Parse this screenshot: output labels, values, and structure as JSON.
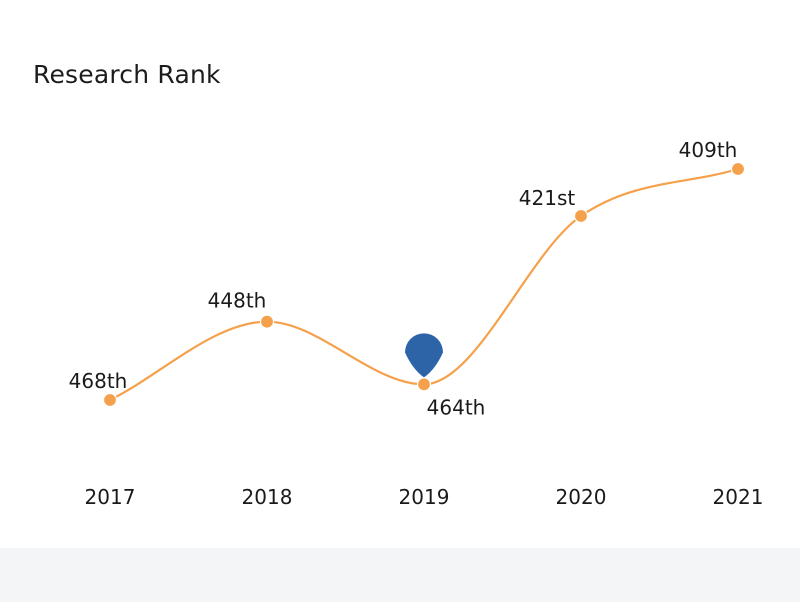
{
  "title": "Research Rank",
  "chart_data": {
    "type": "line",
    "title": "Research Rank",
    "categories": [
      "2017",
      "2018",
      "2019",
      "2020",
      "2021"
    ],
    "values": [
      468,
      448,
      464,
      421,
      409
    ],
    "data_labels": [
      "468th",
      "448th",
      "464th",
      "421st",
      "409th"
    ],
    "y_axis": "rank (lower is better), reversed",
    "highlight_index": 2,
    "grid": false,
    "legend": "none",
    "colors": {
      "line": "#f5a04a",
      "point": "#f5a04a",
      "marker": "#2d64a8",
      "text": "#1a1a1a"
    }
  }
}
